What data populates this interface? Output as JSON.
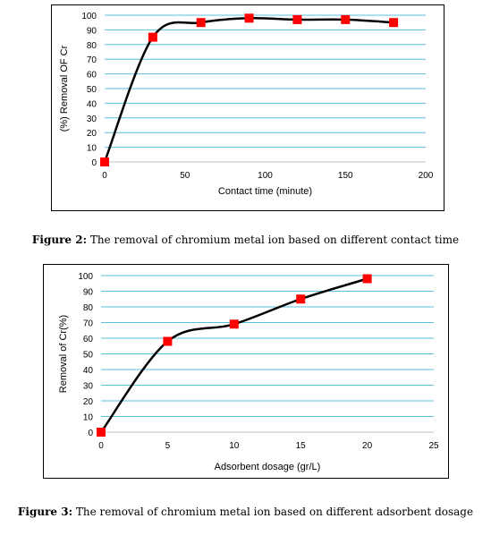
{
  "chart_data": [
    {
      "type": "scatter",
      "title": "",
      "xlabel": "Contact time (minute)",
      "ylabel": "(%) Removal OF Cr",
      "xlim": [
        0,
        200
      ],
      "ylim": [
        0,
        100
      ],
      "xticks": [
        0,
        50,
        100,
        150,
        200
      ],
      "yticks": [
        0,
        10,
        20,
        30,
        40,
        50,
        60,
        70,
        80,
        90,
        100
      ],
      "grid": "horizontal",
      "legend": "none",
      "marker_color": "#ff0000",
      "line_color": "#000000",
      "grid_color": "#5bc0d8",
      "series": [
        {
          "x": [
            0,
            30,
            60,
            90,
            120,
            150,
            180
          ],
          "y": [
            0,
            85,
            95,
            98,
            97,
            97,
            95
          ]
        }
      ]
    },
    {
      "type": "scatter",
      "title": "",
      "xlabel": "Adsorbent dosage (gr/L)",
      "ylabel": "Removal of Cr(%)",
      "xlim": [
        0,
        25
      ],
      "ylim": [
        0,
        100
      ],
      "xticks": [
        0,
        5,
        10,
        15,
        20,
        25
      ],
      "yticks": [
        0,
        10,
        20,
        30,
        40,
        50,
        60,
        70,
        80,
        90,
        100
      ],
      "grid": "horizontal",
      "legend": "none",
      "marker_color": "#ff0000",
      "line_color": "#000000",
      "grid_color": "#5bc0d8",
      "series": [
        {
          "x": [
            0,
            5,
            10,
            15,
            20
          ],
          "y": [
            0,
            58,
            69,
            85,
            98
          ]
        }
      ]
    }
  ],
  "captions": [
    {
      "label": "Figure 2:",
      "text": " The removal of chromium metal ion based on different contact time"
    },
    {
      "label": "Figure 3:",
      "text": " The removal of chromium metal ion based on different adsorbent dosage"
    }
  ]
}
